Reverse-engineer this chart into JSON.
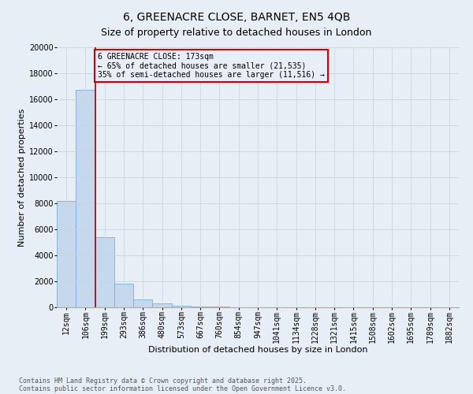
{
  "title1": "6, GREENACRE CLOSE, BARNET, EN5 4QB",
  "title2": "Size of property relative to detached houses in London",
  "xlabel": "Distribution of detached houses by size in London",
  "ylabel": "Number of detached properties",
  "bar_labels": [
    "12sqm",
    "106sqm",
    "199sqm",
    "293sqm",
    "386sqm",
    "480sqm",
    "573sqm",
    "667sqm",
    "760sqm",
    "854sqm",
    "947sqm",
    "1041sqm",
    "1134sqm",
    "1228sqm",
    "1321sqm",
    "1415sqm",
    "1508sqm",
    "1602sqm",
    "1695sqm",
    "1789sqm",
    "1882sqm"
  ],
  "bar_values": [
    8200,
    16700,
    5400,
    1800,
    600,
    300,
    150,
    80,
    50,
    30,
    20,
    15,
    12,
    10,
    8,
    6,
    5,
    4,
    3,
    2,
    2
  ],
  "bar_color": "#c5d8ee",
  "bar_edge_color": "#7bafd4",
  "ylim": [
    0,
    20000
  ],
  "yticks": [
    0,
    2000,
    4000,
    6000,
    8000,
    10000,
    12000,
    14000,
    16000,
    18000,
    20000
  ],
  "vline_x_index": 1.5,
  "vline_color": "#aa0000",
  "annotation_text": "6 GREENACRE CLOSE: 173sqm\n← 65% of detached houses are smaller (21,535)\n35% of semi-detached houses are larger (11,516) →",
  "annotation_box_color": "#cc0000",
  "footnote1": "Contains HM Land Registry data © Crown copyright and database right 2025.",
  "footnote2": "Contains public sector information licensed under the Open Government Licence v3.0.",
  "bg_color": "#e8eef5",
  "grid_color": "#c8d4e0",
  "title_fontsize": 10,
  "subtitle_fontsize": 9,
  "ylabel_fontsize": 8,
  "xlabel_fontsize": 8,
  "tick_fontsize": 7,
  "annot_fontsize": 7,
  "footnote_fontsize": 6
}
